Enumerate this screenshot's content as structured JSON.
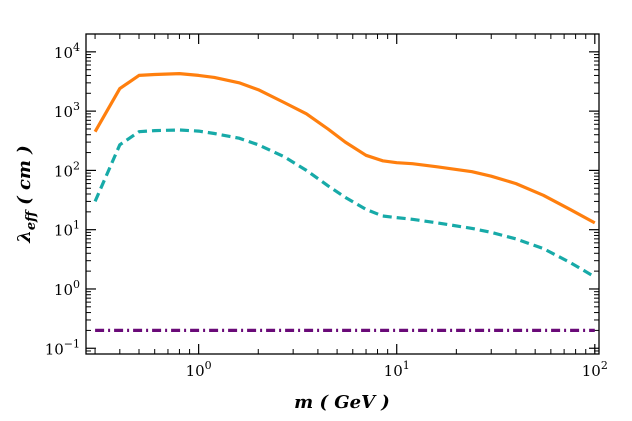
{
  "chart_data": {
    "type": "line",
    "title": "",
    "xlabel": "m ( GeV )",
    "ylabel_main": "λ",
    "ylabel_sub": "eff",
    "ylabel_unit": " ( cm )",
    "xscale": "log",
    "yscale": "log",
    "xlim": [
      0.27,
      105
    ],
    "ylim": [
      0.08,
      20000
    ],
    "grid": false,
    "legend": "none",
    "x_ticks": [
      {
        "value": 1,
        "base": "10",
        "exp": "0"
      },
      {
        "value": 10,
        "base": "10",
        "exp": "1"
      },
      {
        "value": 100,
        "base": "10",
        "exp": "2"
      }
    ],
    "y_ticks": [
      {
        "value": 0.1,
        "base": "10",
        "exp": "−1"
      },
      {
        "value": 1,
        "base": "10",
        "exp": "0"
      },
      {
        "value": 10,
        "base": "10",
        "exp": "1"
      },
      {
        "value": 100,
        "base": "10",
        "exp": "2"
      },
      {
        "value": 1000,
        "base": "10",
        "exp": "3"
      },
      {
        "value": 10000,
        "base": "10",
        "exp": "4"
      }
    ],
    "series": [
      {
        "color": "#ff7f0e",
        "style": "solid",
        "x": [
          0.3,
          0.4,
          0.5,
          0.6,
          0.8,
          1.0,
          1.2,
          1.6,
          2.0,
          2.7,
          3.5,
          4.5,
          5.5,
          7,
          8.5,
          10,
          12,
          16,
          24,
          30,
          40,
          55,
          75,
          100
        ],
        "y": [
          450,
          2400,
          4000,
          4150,
          4300,
          4000,
          3700,
          3000,
          2300,
          1400,
          900,
          500,
          300,
          180,
          145,
          135,
          130,
          115,
          95,
          80,
          60,
          38,
          22,
          13
        ]
      },
      {
        "color": "#17aaa8",
        "style": "dashed",
        "x": [
          0.3,
          0.4,
          0.5,
          0.6,
          0.8,
          1.0,
          1.2,
          1.6,
          2.0,
          2.7,
          3.5,
          4.5,
          5.5,
          7,
          8.5,
          10,
          12,
          16,
          24,
          30,
          40,
          55,
          75,
          100
        ],
        "y": [
          30,
          270,
          450,
          470,
          480,
          460,
          420,
          350,
          270,
          170,
          100,
          55,
          35,
          22,
          17,
          16,
          15,
          13,
          10.5,
          9,
          7,
          4.8,
          2.8,
          1.6
        ]
      },
      {
        "color": "#6a0a78",
        "style": "dashdot",
        "x": [
          0.3,
          100
        ],
        "y": [
          0.2,
          0.2
        ]
      }
    ]
  }
}
